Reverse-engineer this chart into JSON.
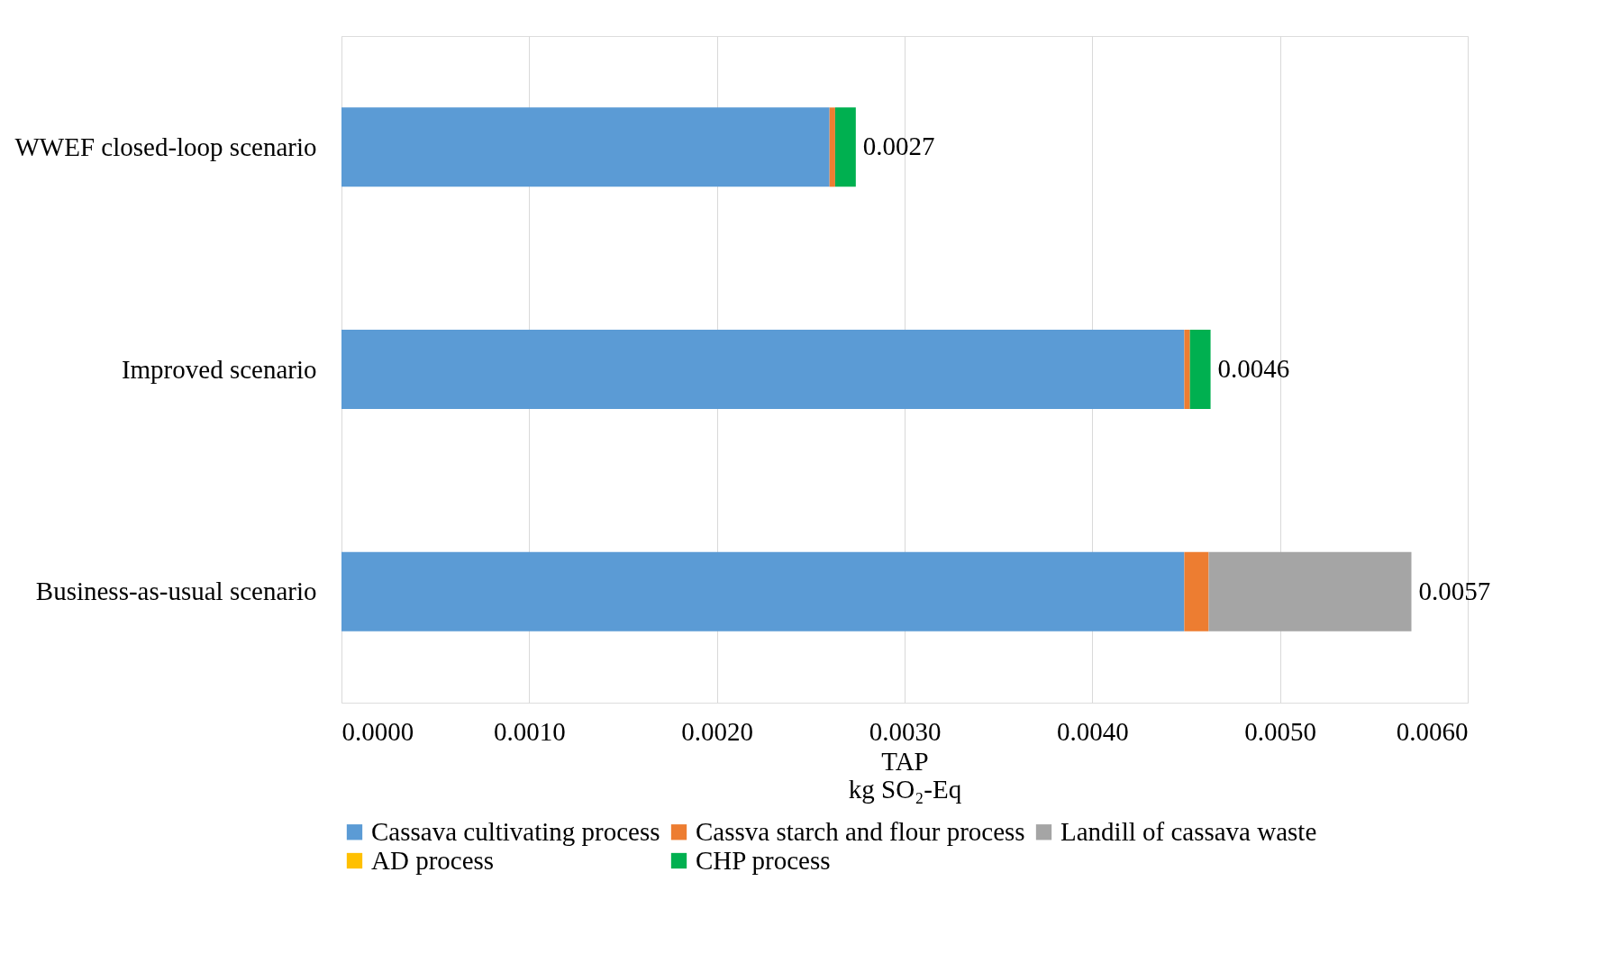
{
  "chart_data": {
    "type": "bar",
    "orientation": "horizontal",
    "stacked": true,
    "categories": [
      "WWEF closed-loop scenario",
      "Improved scenario",
      "Business-as-usual scenario"
    ],
    "series": [
      {
        "name": "Cassava cultivating process",
        "color": "#5b9bd5",
        "values": [
          0.0026,
          0.00449,
          0.00449
        ]
      },
      {
        "name": "Cassva starch and flour process",
        "color": "#ed7d31",
        "values": [
          3e-05,
          3e-05,
          0.00013
        ]
      },
      {
        "name": "Landill of cassava waste",
        "color": "#a5a5a5",
        "values": [
          null,
          null,
          0.00108
        ]
      },
      {
        "name": "AD process",
        "color": "#ffc000",
        "values": [
          null,
          null,
          null
        ]
      },
      {
        "name": "CHP process",
        "color": "#00b050",
        "values": [
          0.00011,
          0.00011,
          null
        ]
      }
    ],
    "totals": [
      "0.0027",
      "0.0046",
      "0.0057"
    ],
    "xlabel": "TAP\nkg SO₂-Eq",
    "xlim": [
      0,
      0.006
    ],
    "xticks": [
      {
        "value": 0,
        "label": "0.0000"
      },
      {
        "value": 0.001,
        "label": "0.0010"
      },
      {
        "value": 0.002,
        "label": "0.0020"
      },
      {
        "value": 0.003,
        "label": "0.0030"
      },
      {
        "value": 0.004,
        "label": "0.0040"
      },
      {
        "value": 0.005,
        "label": "0.0050"
      },
      {
        "value": 0.006,
        "label": "0.0060"
      }
    ],
    "grid": "x",
    "legend": "bottom"
  }
}
